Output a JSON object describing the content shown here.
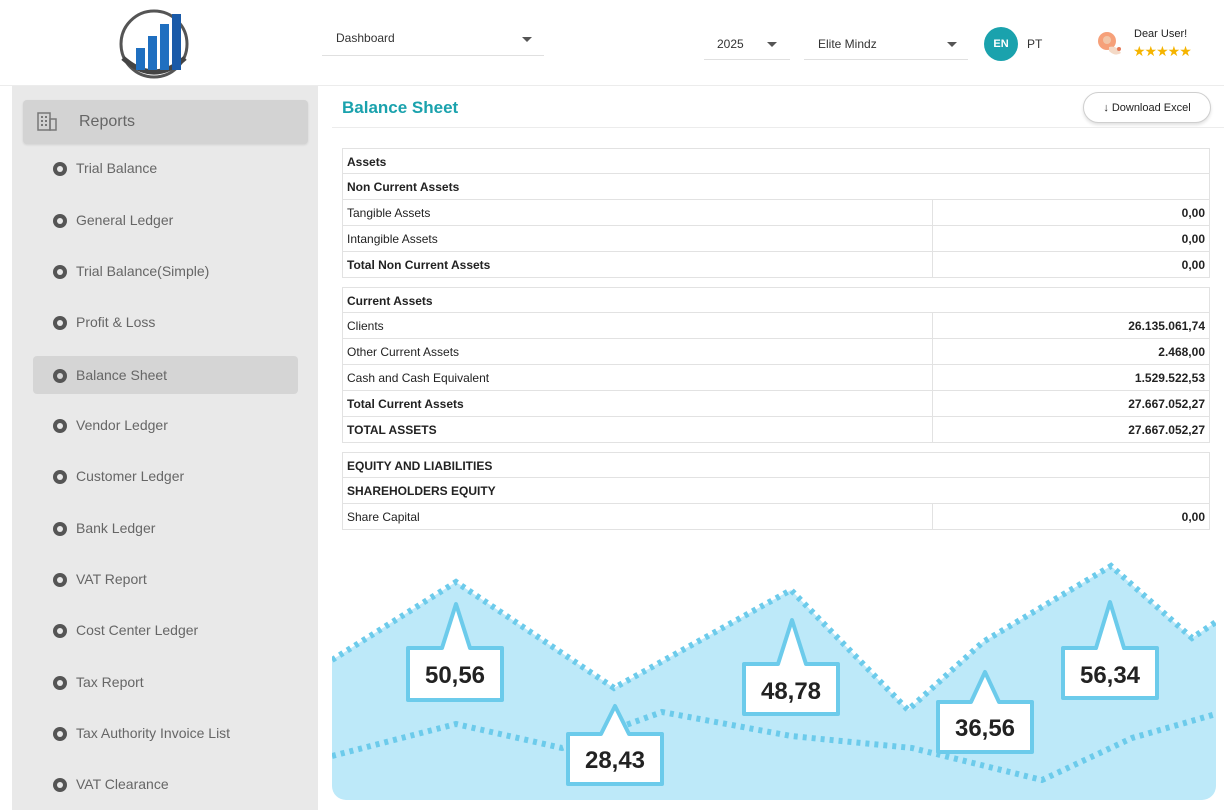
{
  "header": {
    "dashboard_select": "Dashboard",
    "year_select": "2025",
    "company_select": "Elite Mindz",
    "lang_active": "EN",
    "lang_other": "PT",
    "greeting": "Dear User!",
    "rating_stars": "★★★★★",
    "accent_color": "#1aa2ad"
  },
  "sidebar": {
    "section_label": "Reports",
    "items": [
      {
        "label": "Trial Balance"
      },
      {
        "label": "General Ledger"
      },
      {
        "label": "Trial Balance(Simple)"
      },
      {
        "label": "Profit & Loss"
      },
      {
        "label": "Balance Sheet",
        "active": true
      },
      {
        "label": "Vendor Ledger"
      },
      {
        "label": "Customer Ledger"
      },
      {
        "label": "Bank Ledger"
      },
      {
        "label": "VAT Report"
      },
      {
        "label": "Cost Center Ledger"
      },
      {
        "label": "Tax Report"
      },
      {
        "label": "Tax Authority Invoice List"
      },
      {
        "label": "VAT Clearance"
      }
    ]
  },
  "main": {
    "title": "Balance Sheet",
    "download_label": "Download Excel",
    "rows": [
      {
        "label": "Assets",
        "amount": "",
        "kind": "head"
      },
      {
        "label": "Non Current Assets",
        "amount": "",
        "kind": "head"
      },
      {
        "label": "Tangible Assets",
        "amount": "0,00",
        "kind": "line"
      },
      {
        "label": "Intangible Assets",
        "amount": "0,00",
        "kind": "line"
      },
      {
        "label": "Total Non Current Assets",
        "amount": "0,00",
        "kind": "total"
      },
      {
        "label": "Current Assets",
        "amount": "",
        "kind": "head"
      },
      {
        "label": "Clients",
        "amount": "26.135.061,74",
        "kind": "line"
      },
      {
        "label": "Other Current Assets",
        "amount": "2.468,00",
        "kind": "line"
      },
      {
        "label": "Cash and Cash Equivalent",
        "amount": "1.529.522,53",
        "kind": "line"
      },
      {
        "label": "Total Current Assets",
        "amount": "27.667.052,27",
        "kind": "total"
      },
      {
        "label": "TOTAL ASSETS",
        "amount": "27.667.052,27",
        "kind": "total"
      },
      {
        "label": "EQUITY AND LIABILITIES",
        "amount": "",
        "kind": "head"
      },
      {
        "label": "SHAREHOLDERS EQUITY",
        "amount": "",
        "kind": "head"
      },
      {
        "label": "Share Capital",
        "amount": "0,00",
        "kind": "line"
      }
    ]
  },
  "decor": {
    "callouts": [
      "50,56",
      "28,43",
      "48,78",
      "36,56",
      "56,34"
    ],
    "wave_fill": "#bde9f9",
    "wave_stroke": "#6ccbeb"
  }
}
